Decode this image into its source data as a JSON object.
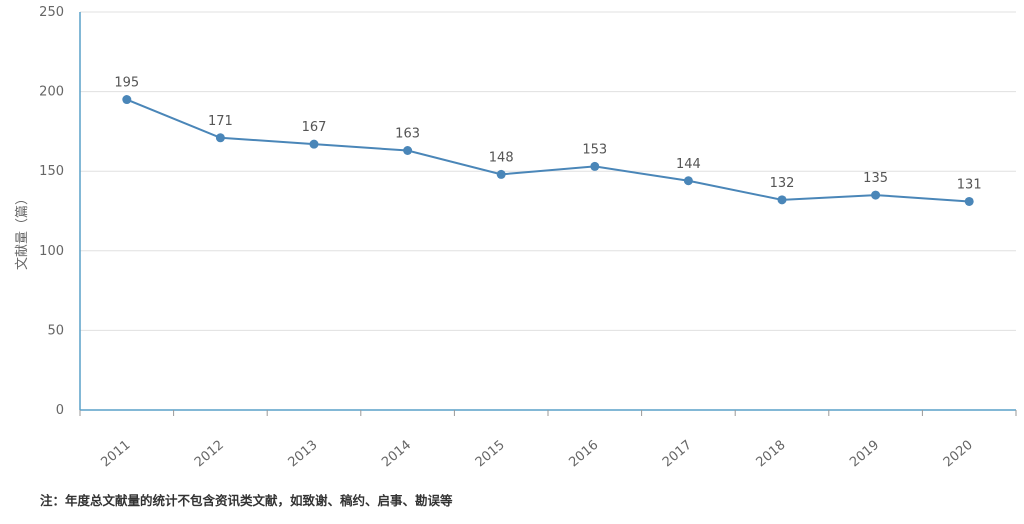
{
  "chart_data": {
    "type": "line",
    "categories": [
      "2011",
      "2012",
      "2013",
      "2014",
      "2015",
      "2016",
      "2017",
      "2018",
      "2019",
      "2020"
    ],
    "values": [
      195,
      171,
      167,
      163,
      148,
      153,
      144,
      132,
      135,
      131
    ],
    "ylabel": "文献量（篇）",
    "ylim": [
      0,
      250
    ],
    "yticks": [
      0,
      50,
      100,
      150,
      200,
      250
    ],
    "grid": true,
    "data_labels": true,
    "line_color": "#4a86b8",
    "axis_color": "#5aa0c8",
    "grid_color": "#e0e0e0"
  },
  "note": "注：年度总文献量的统计不包含资讯类文献，如致谢、稿约、启事、勘误等"
}
